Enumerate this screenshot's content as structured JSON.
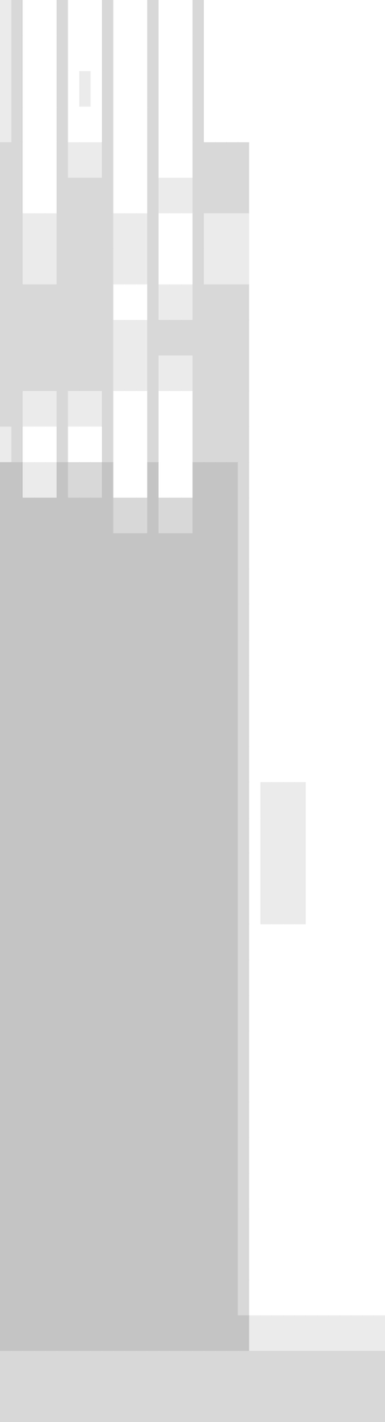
{
  "chart_data": {
    "type": "heatmap",
    "color": "#c4c4c4",
    "value_range": [
      0,
      3
    ],
    "cells": [
      [
        1,
        2,
        0,
        0,
        0,
        2,
        0,
        0,
        0,
        2,
        0,
        0,
        0,
        2,
        0,
        0,
        0,
        2,
        0,
        0,
        0,
        0,
        0,
        0,
        0,
        0,
        0,
        0,
        0,
        0,
        0,
        0,
        0,
        0
      ],
      [
        1,
        2,
        0,
        0,
        0,
        2,
        0,
        0,
        0,
        2,
        0,
        0,
        0,
        2,
        0,
        0,
        0,
        2,
        0,
        0,
        0,
        0,
        0,
        0,
        0,
        0,
        0,
        0,
        0,
        0,
        0,
        0,
        0,
        0
      ],
      [
        1,
        2,
        0,
        0,
        0,
        2,
        0,
        1,
        0,
        2,
        0,
        0,
        0,
        2,
        0,
        0,
        0,
        2,
        0,
        0,
        0,
        0,
        0,
        0,
        0,
        0,
        0,
        0,
        0,
        0,
        0,
        0,
        0,
        0
      ],
      [
        1,
        2,
        0,
        0,
        0,
        2,
        0,
        0,
        0,
        2,
        0,
        0,
        0,
        2,
        0,
        0,
        0,
        2,
        0,
        0,
        0,
        0,
        0,
        0,
        0,
        0,
        0,
        0,
        0,
        0,
        0,
        0,
        0,
        0
      ],
      [
        2,
        2,
        0,
        0,
        0,
        2,
        1,
        1,
        1,
        2,
        0,
        0,
        0,
        2,
        0,
        0,
        0,
        2,
        2,
        2,
        2,
        2,
        0,
        0,
        0,
        0,
        0,
        0,
        0,
        0,
        0,
        0,
        0,
        0
      ],
      [
        2,
        2,
        0,
        0,
        0,
        2,
        2,
        2,
        2,
        2,
        0,
        0,
        0,
        2,
        1,
        1,
        1,
        2,
        2,
        2,
        2,
        2,
        0,
        0,
        0,
        0,
        0,
        0,
        0,
        0,
        0,
        0,
        0,
        0
      ],
      [
        2,
        2,
        1,
        1,
        1,
        2,
        2,
        2,
        2,
        2,
        1,
        1,
        1,
        2,
        0,
        0,
        0,
        2,
        1,
        1,
        1,
        1,
        0,
        0,
        0,
        0,
        0,
        0,
        0,
        0,
        0,
        0,
        0,
        0
      ],
      [
        2,
        2,
        1,
        1,
        1,
        2,
        2,
        2,
        2,
        2,
        1,
        1,
        1,
        2,
        0,
        0,
        0,
        2,
        1,
        1,
        1,
        1,
        0,
        0,
        0,
        0,
        0,
        0,
        0,
        0,
        0,
        0,
        0,
        0
      ],
      [
        2,
        2,
        2,
        2,
        2,
        2,
        2,
        2,
        2,
        2,
        0,
        0,
        0,
        2,
        1,
        1,
        1,
        2,
        2,
        2,
        2,
        2,
        0,
        0,
        0,
        0,
        0,
        0,
        0,
        0,
        0,
        0,
        0,
        0
      ],
      [
        2,
        2,
        2,
        2,
        2,
        2,
        2,
        2,
        2,
        2,
        1,
        1,
        1,
        2,
        2,
        2,
        2,
        2,
        2,
        2,
        2,
        2,
        0,
        0,
        0,
        0,
        0,
        0,
        0,
        0,
        0,
        0,
        0,
        0
      ],
      [
        2,
        2,
        2,
        2,
        2,
        2,
        2,
        2,
        2,
        2,
        1,
        1,
        1,
        2,
        1,
        1,
        1,
        2,
        2,
        2,
        2,
        2,
        0,
        0,
        0,
        0,
        0,
        0,
        0,
        0,
        0,
        0,
        0,
        0
      ],
      [
        2,
        2,
        1,
        1,
        1,
        2,
        1,
        1,
        1,
        2,
        0,
        0,
        0,
        2,
        0,
        0,
        0,
        2,
        2,
        2,
        2,
        2,
        0,
        0,
        0,
        0,
        0,
        0,
        0,
        0,
        0,
        0,
        0,
        0
      ],
      [
        1,
        2,
        0,
        0,
        0,
        2,
        0,
        0,
        0,
        2,
        0,
        0,
        0,
        2,
        0,
        0,
        0,
        2,
        2,
        2,
        2,
        2,
        0,
        0,
        0,
        0,
        0,
        0,
        0,
        0,
        0,
        0,
        0,
        0
      ],
      [
        3,
        3,
        1,
        1,
        1,
        3,
        2,
        2,
        2,
        3,
        0,
        0,
        0,
        3,
        0,
        0,
        0,
        3,
        3,
        3,
        3,
        2,
        0,
        0,
        0,
        0,
        0,
        0,
        0,
        0,
        0,
        0,
        0,
        0
      ],
      [
        3,
        3,
        3,
        3,
        3,
        3,
        3,
        3,
        3,
        3,
        2,
        2,
        2,
        3,
        2,
        2,
        2,
        3,
        3,
        3,
        3,
        2,
        0,
        0,
        0,
        0,
        0,
        0,
        0,
        0,
        0,
        0,
        0,
        0
      ],
      [
        3,
        3,
        3,
        3,
        3,
        3,
        3,
        3,
        3,
        3,
        3,
        3,
        3,
        3,
        3,
        3,
        3,
        3,
        3,
        3,
        3,
        2,
        0,
        0,
        0,
        0,
        0,
        0,
        0,
        0,
        0,
        0,
        0,
        0
      ],
      [
        3,
        3,
        3,
        3,
        3,
        3,
        3,
        3,
        3,
        3,
        3,
        3,
        3,
        3,
        3,
        3,
        3,
        3,
        3,
        3,
        3,
        2,
        0,
        0,
        0,
        0,
        0,
        0,
        0,
        0,
        0,
        0,
        0,
        0
      ],
      [
        3,
        3,
        3,
        3,
        3,
        3,
        3,
        3,
        3,
        3,
        3,
        3,
        3,
        3,
        3,
        3,
        3,
        3,
        3,
        3,
        3,
        2,
        0,
        0,
        0,
        0,
        0,
        0,
        0,
        0,
        0,
        0,
        0,
        0
      ],
      [
        3,
        3,
        3,
        3,
        3,
        3,
        3,
        3,
        3,
        3,
        3,
        3,
        3,
        3,
        3,
        3,
        3,
        3,
        3,
        3,
        3,
        2,
        0,
        0,
        0,
        0,
        0,
        0,
        0,
        0,
        0,
        0,
        0,
        0
      ],
      [
        3,
        3,
        3,
        3,
        3,
        3,
        3,
        3,
        3,
        3,
        3,
        3,
        3,
        3,
        3,
        3,
        3,
        3,
        3,
        3,
        3,
        2,
        0,
        0,
        0,
        0,
        0,
        0,
        0,
        0,
        0,
        0,
        0,
        0
      ],
      [
        3,
        3,
        3,
        3,
        3,
        3,
        3,
        3,
        3,
        3,
        3,
        3,
        3,
        3,
        3,
        3,
        3,
        3,
        3,
        3,
        3,
        2,
        0,
        0,
        0,
        0,
        0,
        0,
        0,
        0,
        0,
        0,
        0,
        0
      ],
      [
        3,
        3,
        3,
        3,
        3,
        3,
        3,
        3,
        3,
        3,
        3,
        3,
        3,
        3,
        3,
        3,
        3,
        3,
        3,
        3,
        3,
        2,
        0,
        0,
        0,
        0,
        0,
        0,
        0,
        0,
        0,
        0,
        0,
        0
      ],
      [
        3,
        3,
        3,
        3,
        3,
        3,
        3,
        3,
        3,
        3,
        3,
        3,
        3,
        3,
        3,
        3,
        3,
        3,
        3,
        3,
        3,
        2,
        0,
        1,
        1,
        1,
        1,
        0,
        0,
        0,
        0,
        0,
        0,
        0
      ],
      [
        3,
        3,
        3,
        3,
        3,
        3,
        3,
        3,
        3,
        3,
        3,
        3,
        3,
        3,
        3,
        3,
        3,
        3,
        3,
        3,
        3,
        2,
        0,
        1,
        1,
        1,
        1,
        0,
        0,
        0,
        0,
        0,
        0,
        0
      ],
      [
        3,
        3,
        3,
        3,
        3,
        3,
        3,
        3,
        3,
        3,
        3,
        3,
        3,
        3,
        3,
        3,
        3,
        3,
        3,
        3,
        3,
        2,
        0,
        1,
        1,
        1,
        1,
        0,
        0,
        0,
        0,
        0,
        0,
        0
      ],
      [
        3,
        3,
        3,
        3,
        3,
        3,
        3,
        3,
        3,
        3,
        3,
        3,
        3,
        3,
        3,
        3,
        3,
        3,
        3,
        3,
        3,
        2,
        0,
        1,
        1,
        1,
        1,
        0,
        0,
        0,
        0,
        0,
        0,
        0
      ],
      [
        3,
        3,
        3,
        3,
        3,
        3,
        3,
        3,
        3,
        3,
        3,
        3,
        3,
        3,
        3,
        3,
        3,
        3,
        3,
        3,
        3,
        2,
        0,
        0,
        0,
        0,
        0,
        0,
        0,
        0,
        0,
        0,
        0,
        0
      ],
      [
        3,
        3,
        3,
        3,
        3,
        3,
        3,
        3,
        3,
        3,
        3,
        3,
        3,
        3,
        3,
        3,
        3,
        3,
        3,
        3,
        3,
        2,
        0,
        0,
        0,
        0,
        0,
        0,
        0,
        0,
        0,
        0,
        0,
        0
      ],
      [
        3,
        3,
        3,
        3,
        3,
        3,
        3,
        3,
        3,
        3,
        3,
        3,
        3,
        3,
        3,
        3,
        3,
        3,
        3,
        3,
        3,
        2,
        0,
        0,
        0,
        0,
        0,
        0,
        0,
        0,
        0,
        0,
        0,
        0
      ],
      [
        3,
        3,
        3,
        3,
        3,
        3,
        3,
        3,
        3,
        3,
        3,
        3,
        3,
        3,
        3,
        3,
        3,
        3,
        3,
        3,
        3,
        2,
        0,
        0,
        0,
        0,
        0,
        0,
        0,
        0,
        0,
        0,
        0,
        0
      ],
      [
        3,
        3,
        3,
        3,
        3,
        3,
        3,
        3,
        3,
        3,
        3,
        3,
        3,
        3,
        3,
        3,
        3,
        3,
        3,
        3,
        3,
        2,
        0,
        0,
        0,
        0,
        0,
        0,
        0,
        0,
        0,
        0,
        0,
        0
      ],
      [
        3,
        3,
        3,
        3,
        3,
        3,
        3,
        3,
        3,
        3,
        3,
        3,
        3,
        3,
        3,
        3,
        3,
        3,
        3,
        3,
        3,
        2,
        0,
        0,
        0,
        0,
        0,
        0,
        0,
        0,
        0,
        0,
        0,
        0
      ],
      [
        3,
        3,
        3,
        3,
        3,
        3,
        3,
        3,
        3,
        3,
        3,
        3,
        3,
        3,
        3,
        3,
        3,
        3,
        3,
        3,
        3,
        2,
        0,
        0,
        0,
        0,
        0,
        0,
        0,
        0,
        0,
        0,
        0,
        0
      ],
      [
        3,
        3,
        3,
        3,
        3,
        3,
        3,
        3,
        3,
        3,
        3,
        3,
        3,
        3,
        3,
        3,
        3,
        3,
        3,
        3,
        3,
        2,
        0,
        0,
        0,
        0,
        0,
        0,
        0,
        0,
        0,
        0,
        0,
        0
      ],
      [
        3,
        3,
        3,
        3,
        3,
        3,
        3,
        3,
        3,
        3,
        3,
        3,
        3,
        3,
        3,
        3,
        3,
        3,
        3,
        3,
        3,
        2,
        0,
        0,
        0,
        0,
        0,
        0,
        0,
        0,
        0,
        0,
        0,
        0
      ],
      [
        3,
        3,
        3,
        3,
        3,
        3,
        3,
        3,
        3,
        3,
        3,
        3,
        3,
        3,
        3,
        3,
        3,
        3,
        3,
        3,
        3,
        2,
        0,
        0,
        0,
        0,
        0,
        0,
        0,
        0,
        0,
        0,
        0,
        0
      ],
      [
        3,
        3,
        3,
        3,
        3,
        3,
        3,
        3,
        3,
        3,
        3,
        3,
        3,
        3,
        3,
        3,
        3,
        3,
        3,
        3,
        3,
        2,
        0,
        0,
        0,
        0,
        0,
        0,
        0,
        0,
        0,
        0,
        0,
        0
      ],
      [
        3,
        3,
        3,
        3,
        3,
        3,
        3,
        3,
        3,
        3,
        3,
        3,
        3,
        3,
        3,
        3,
        3,
        3,
        3,
        3,
        3,
        3,
        1,
        1,
        1,
        1,
        1,
        1,
        1,
        1,
        1,
        1,
        1,
        1
      ],
      [
        2,
        2,
        2,
        2,
        2,
        2,
        2,
        2,
        2,
        2,
        2,
        2,
        2,
        2,
        2,
        2,
        2,
        2,
        2,
        2,
        2,
        2,
        2,
        2,
        2,
        2,
        2,
        2,
        2,
        2,
        2,
        2,
        2,
        2
      ],
      [
        2,
        2,
        2,
        2,
        2,
        2,
        2,
        2,
        2,
        2,
        2,
        2,
        2,
        2,
        2,
        2,
        2,
        2,
        2,
        2,
        2,
        2,
        2,
        2,
        2,
        2,
        2,
        2,
        2,
        2,
        2,
        2,
        2,
        2
      ]
    ]
  }
}
